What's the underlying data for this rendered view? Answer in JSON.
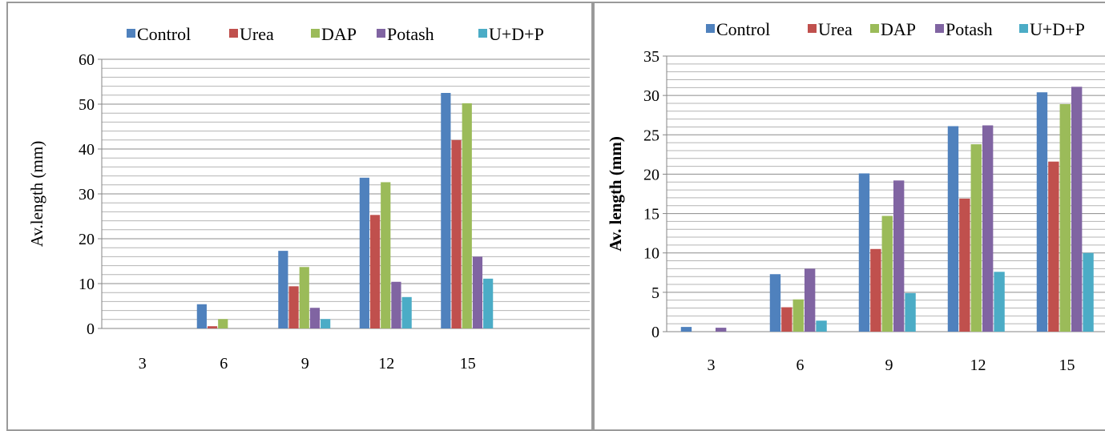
{
  "chart_data": [
    {
      "type": "bar",
      "title": "",
      "xlabel": "",
      "ylabel": "Av.length (mm)",
      "ylim": [
        0,
        60
      ],
      "y_major_ticks": [
        0,
        10,
        20,
        30,
        40,
        50,
        60
      ],
      "y_minor_step": 2,
      "grid": true,
      "legend_position": "top",
      "categories": [
        "3",
        "6",
        "9",
        "12",
        "15"
      ],
      "extra_empty_slot": true,
      "series": [
        {
          "name": "Control",
          "color": "#4F81BD",
          "values": [
            0,
            5.4,
            17.3,
            33.6,
            52.5
          ]
        },
        {
          "name": "Urea",
          "color": "#C0504D",
          "values": [
            0,
            0.5,
            9.4,
            25.3,
            42.0
          ]
        },
        {
          "name": "DAP",
          "color": "#9BBB59",
          "values": [
            0,
            2.1,
            13.7,
            32.6,
            50.2
          ]
        },
        {
          "name": "Potash",
          "color": "#8064A2",
          "values": [
            0,
            0,
            4.6,
            10.4,
            16.0
          ]
        },
        {
          "name": "U+D+P",
          "color": "#4BACC6",
          "values": [
            0,
            0,
            2.1,
            7.0,
            11.1
          ]
        }
      ]
    },
    {
      "type": "bar",
      "title": "",
      "xlabel": "",
      "ylabel": "Av. length (mm)",
      "ylim": [
        0,
        35
      ],
      "y_major_ticks": [
        0,
        5,
        10,
        15,
        20,
        25,
        30,
        35
      ],
      "y_minor_step": 1,
      "grid": true,
      "legend_position": "top",
      "categories": [
        "3",
        "6",
        "9",
        "12",
        "15"
      ],
      "extra_empty_slot": false,
      "series": [
        {
          "name": "Control",
          "color": "#4F81BD",
          "values": [
            0.6,
            7.3,
            20.1,
            26.1,
            30.4
          ]
        },
        {
          "name": "Urea",
          "color": "#C0504D",
          "values": [
            0,
            3.1,
            10.5,
            16.9,
            21.6
          ]
        },
        {
          "name": "DAP",
          "color": "#9BBB59",
          "values": [
            0,
            4.1,
            14.7,
            23.8,
            28.9
          ]
        },
        {
          "name": "Potash",
          "color": "#8064A2",
          "values": [
            0.5,
            8.0,
            19.2,
            26.2,
            31.1
          ]
        },
        {
          "name": "U+D+P",
          "color": "#4BACC6",
          "values": [
            0,
            1.4,
            4.9,
            7.6,
            10.0
          ]
        }
      ]
    }
  ]
}
